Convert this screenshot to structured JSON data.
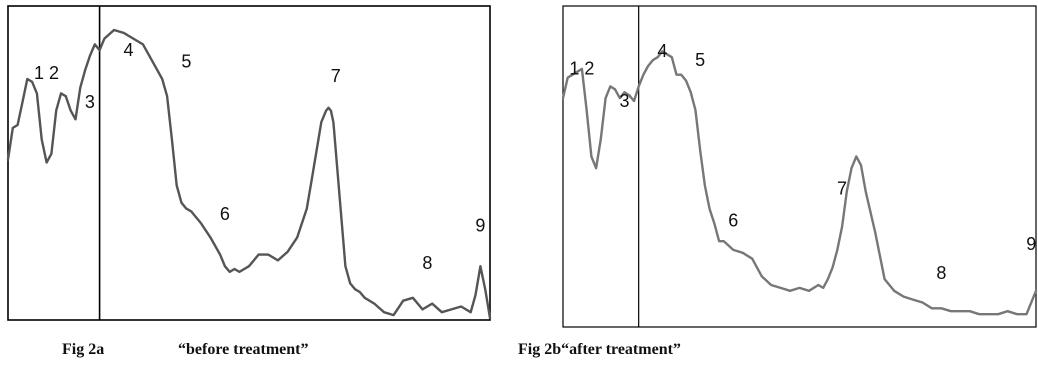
{
  "chart_data": [
    {
      "type": "line",
      "title": "",
      "xlabel": "",
      "ylabel": "",
      "xlim": [
        0,
        100
      ],
      "ylim": [
        0,
        100
      ],
      "grid": false,
      "divider_x": 19,
      "line_color": "#555555",
      "series": [
        {
          "x": [
            0,
            1,
            2,
            3,
            4,
            5,
            6,
            7,
            8,
            9,
            10,
            11,
            12,
            13,
            14,
            15,
            16,
            17,
            18,
            19,
            20,
            22,
            24,
            26,
            28,
            30,
            31,
            32,
            33,
            34,
            35,
            36,
            37,
            38,
            40,
            42,
            44,
            45,
            46,
            47,
            48,
            50,
            52,
            54,
            56,
            58,
            60,
            62,
            63,
            64,
            65,
            66,
            66.5,
            67,
            67.5,
            68,
            69,
            70,
            71,
            72,
            73,
            74,
            76,
            78,
            80,
            82,
            84,
            86,
            88,
            90,
            92,
            94,
            96,
            97,
            98,
            99,
            100
          ],
          "y": [
            55,
            66,
            67,
            75,
            83,
            82,
            78,
            62,
            54,
            57,
            72,
            78,
            77,
            72,
            69,
            80,
            86,
            91,
            95,
            93,
            97,
            100,
            99,
            97,
            95,
            89,
            86,
            83,
            77,
            62,
            46,
            40,
            38,
            37,
            33,
            28,
            22,
            18,
            16,
            17,
            16,
            18,
            22,
            22,
            20,
            23,
            28,
            38,
            48,
            58,
            68,
            72,
            73,
            72,
            68,
            58,
            38,
            18,
            12,
            10,
            9,
            7,
            5,
            2,
            1,
            6,
            7,
            3,
            5,
            2,
            3,
            4,
            2,
            8,
            18,
            10,
            0
          ]
        }
      ],
      "annotations": [
        {
          "text": "1 2",
          "x": 8,
          "y": 83
        },
        {
          "text": "3",
          "x": 17,
          "y": 73
        },
        {
          "text": "4",
          "x": 25,
          "y": 91
        },
        {
          "text": "5",
          "x": 37,
          "y": 87
        },
        {
          "text": "6",
          "x": 45,
          "y": 34
        },
        {
          "text": "7",
          "x": 68,
          "y": 82
        },
        {
          "text": "8",
          "x": 87,
          "y": 17
        },
        {
          "text": "9",
          "x": 98,
          "y": 30
        }
      ]
    },
    {
      "type": "line",
      "title": "",
      "xlabel": "",
      "ylabel": "",
      "xlim": [
        0,
        100
      ],
      "ylim": [
        0,
        100
      ],
      "grid": false,
      "divider_x": 16,
      "line_color": "#777777",
      "series": [
        {
          "x": [
            0,
            1,
            2,
            3,
            4,
            5,
            6,
            7,
            8,
            9,
            10,
            11,
            12,
            13,
            14,
            15,
            16,
            17,
            18,
            19,
            20,
            21,
            22,
            23,
            24,
            25,
            26,
            27,
            28,
            29,
            30,
            31,
            32,
            33,
            34,
            36,
            38,
            40,
            42,
            44,
            46,
            48,
            50,
            52,
            54,
            55,
            56,
            57,
            58,
            59,
            60,
            61,
            62,
            63,
            64,
            66,
            68,
            70,
            72,
            74,
            76,
            78,
            80,
            82,
            84,
            86,
            88,
            90,
            92,
            94,
            96,
            98,
            100
          ],
          "y": [
            76,
            83,
            84,
            85,
            86,
            72,
            56,
            52,
            62,
            76,
            80,
            79,
            76,
            78,
            77,
            75,
            80,
            84,
            87,
            89,
            90,
            92,
            91,
            90,
            84,
            84,
            82,
            78,
            72,
            58,
            46,
            38,
            33,
            27,
            27,
            24,
            23,
            21,
            15,
            12,
            11,
            10,
            11,
            10,
            12,
            11,
            14,
            18,
            24,
            32,
            44,
            52,
            56,
            53,
            44,
            30,
            14,
            10,
            8,
            7,
            6,
            4,
            4,
            3,
            3,
            3,
            2,
            2,
            2,
            3,
            2,
            2,
            10
          ]
        }
      ],
      "annotations": [
        {
          "text": "1 2",
          "x": 4,
          "y": 84
        },
        {
          "text": "3",
          "x": 13,
          "y": 73
        },
        {
          "text": "4",
          "x": 21,
          "y": 90
        },
        {
          "text": "5",
          "x": 29,
          "y": 87
        },
        {
          "text": "6",
          "x": 36,
          "y": 32
        },
        {
          "text": "7",
          "x": 59,
          "y": 43
        },
        {
          "text": "8",
          "x": 80,
          "y": 14
        },
        {
          "text": "9",
          "x": 99,
          "y": 24
        }
      ]
    }
  ],
  "captions": {
    "a_label": "Fig 2a",
    "a_text": "“before treatment”",
    "b": "Fig 2b“after treatment”"
  }
}
